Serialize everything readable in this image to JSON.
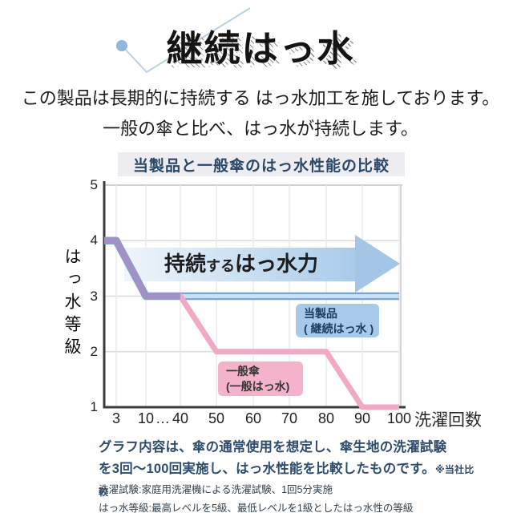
{
  "title": {
    "text": "継続はっ水"
  },
  "intro": {
    "line1": "この製品は長期的に持続する はっ水加工を施しております。",
    "line2": "一般の傘と比べ、はっ水が持続します。"
  },
  "chart_data": {
    "type": "line",
    "title": "当製品と一般傘のはっ水性能の比較",
    "xlabel": "洗濯回数",
    "ylabel": "はっ水等級",
    "x_ticks": [
      "3",
      "10",
      "…",
      "40",
      "50",
      "60",
      "70",
      "80",
      "90",
      "100"
    ],
    "y_ticks": [
      "5",
      "4",
      "3",
      "2",
      "1"
    ],
    "ylim": [
      1,
      5
    ],
    "x_axis_break_between": [
      "10",
      "40"
    ],
    "grid": true,
    "arrow_annotation": {
      "part1": "持続",
      "part2": "する",
      "part3": "はっ水力"
    },
    "series": [
      {
        "name": "当製品(継続はっ水)",
        "role": "product",
        "color": "#79a7d1",
        "inner_color": "#c9dff2",
        "legend_color": "#a7c9ea",
        "legend_line1": "当製品",
        "legend_line2": "( 継続はっ水 )",
        "x": [
          3,
          10,
          100
        ],
        "values": [
          4,
          3,
          3
        ]
      },
      {
        "name": "一般傘(一般はっ水)",
        "role": "general",
        "color": "#f2a9c6",
        "legend_color": "#f4b2cb",
        "legend_line1": "一般傘",
        "legend_line2": "(一般はっ水)",
        "x": [
          3,
          10,
          40,
          50,
          80,
          90,
          100
        ],
        "values": [
          4,
          3,
          3,
          2,
          2,
          1,
          1
        ]
      }
    ],
    "overlap_segment": {
      "color": "#a291c6",
      "x": [
        3,
        10,
        40
      ],
      "values": [
        4,
        3,
        3
      ]
    }
  },
  "footer": {
    "line1": "グラフ内容は、傘の通常使用を想定し、傘生地の洗濯試験",
    "line2": "を3回〜100回実施し、はっ水性能を比較したものです。",
    "note_small": "※当社比較"
  },
  "notes": {
    "line1": "洗濯試験:家庭用洗濯機による洗濯試験、1回5分実施",
    "line2": "はっ水等級:最高レベルを5級、最低レベルを1級としたはっ水性の等級"
  },
  "colors": {
    "navy_text": "#2e4d6e",
    "title_bar_bg": "#ededf1",
    "product_blue": "#a7c9ea",
    "general_pink": "#f4b2cb",
    "overlap_purple": "#a291c6",
    "arrow_blue_light": "#eef5fb",
    "arrow_blue": "#a3c6e6",
    "decor_dot_blue": "#8fb7dc",
    "decor_line_blue": "#bcd0e4"
  }
}
